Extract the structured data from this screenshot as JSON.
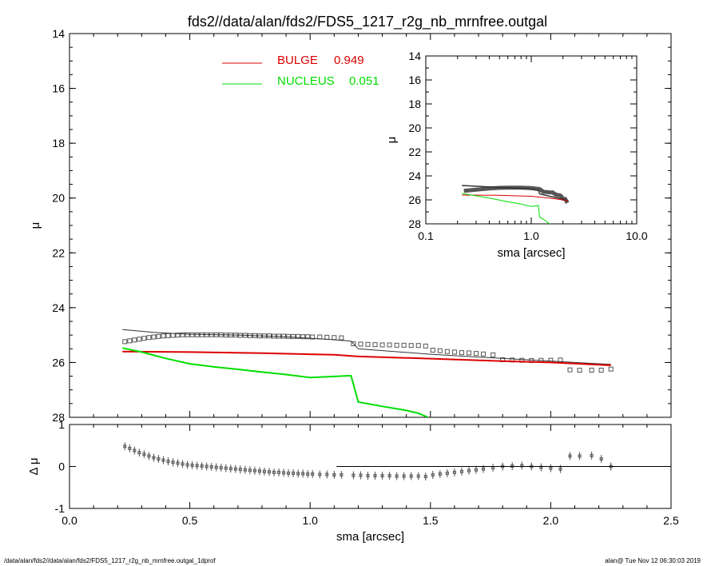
{
  "chart_data": [
    {
      "type": "scatter",
      "title": "fds2//data/alan/fds2/FDS5_1217_r2g_nb_mrnfree.outgal",
      "xlabel": "",
      "ylabel": "μ",
      "xlim": [
        0.0,
        2.5
      ],
      "ylim": [
        28,
        14
      ],
      "y_inverted": true,
      "yticks": [
        "14",
        "16",
        "18",
        "20",
        "22",
        "24",
        "26",
        "28"
      ],
      "legend": [
        {
          "name": "BULGE",
          "value": "0.949",
          "color": "#dd0000"
        },
        {
          "name": "NUCLEUS",
          "value": "0.051",
          "color": "#00dd00"
        }
      ],
      "legend_position": "top-center",
      "series": [
        {
          "name": "data",
          "marker": "square",
          "color": "#555555",
          "x": [
            0.23,
            0.25,
            0.27,
            0.29,
            0.31,
            0.33,
            0.35,
            0.37,
            0.39,
            0.41,
            0.43,
            0.45,
            0.47,
            0.49,
            0.51,
            0.53,
            0.55,
            0.57,
            0.59,
            0.61,
            0.63,
            0.65,
            0.67,
            0.69,
            0.71,
            0.73,
            0.75,
            0.77,
            0.79,
            0.81,
            0.83,
            0.85,
            0.87,
            0.89,
            0.91,
            0.93,
            0.95,
            0.97,
            0.99,
            1.01,
            1.04,
            1.07,
            1.1,
            1.13,
            1.18,
            1.21,
            1.24,
            1.27,
            1.3,
            1.33,
            1.36,
            1.39,
            1.42,
            1.45,
            1.48,
            1.51,
            1.54,
            1.57,
            1.6,
            1.63,
            1.66,
            1.69,
            1.72,
            1.76,
            1.8,
            1.84,
            1.88,
            1.92,
            1.96,
            2.0,
            2.04,
            2.08,
            2.12,
            2.17,
            2.21,
            2.25
          ],
          "y": [
            25.24,
            25.21,
            25.18,
            25.15,
            25.12,
            25.09,
            25.07,
            25.05,
            25.03,
            25.02,
            25.01,
            25.0,
            24.99,
            24.99,
            24.99,
            24.99,
            24.99,
            24.99,
            24.99,
            24.99,
            24.99,
            25.0,
            25.0,
            25.0,
            25.01,
            25.01,
            25.02,
            25.02,
            25.03,
            25.03,
            25.03,
            25.04,
            25.04,
            25.04,
            25.05,
            25.05,
            25.05,
            25.06,
            25.06,
            25.07,
            25.07,
            25.08,
            25.09,
            25.1,
            25.32,
            25.33,
            25.34,
            25.35,
            25.36,
            25.36,
            25.37,
            25.37,
            25.38,
            25.38,
            25.4,
            25.55,
            25.57,
            25.6,
            25.62,
            25.64,
            25.65,
            25.67,
            25.69,
            25.72,
            25.9,
            25.91,
            25.92,
            25.93,
            25.92,
            25.92,
            25.91,
            26.27,
            26.28,
            26.28,
            26.28,
            26.24
          ]
        },
        {
          "name": "model",
          "color": "#333333",
          "x": [
            0.22,
            0.35,
            0.5,
            0.7,
            0.9,
            1.1,
            1.17,
            1.2,
            1.35,
            1.5,
            1.7,
            1.9,
            2.1,
            2.25
          ],
          "y": [
            24.8,
            24.9,
            24.97,
            25.0,
            25.06,
            25.17,
            25.22,
            25.5,
            25.6,
            25.7,
            25.8,
            25.9,
            26.0,
            26.07
          ]
        },
        {
          "name": "BULGE",
          "color": "#dd0000",
          "x": [
            0.22,
            0.5,
            0.8,
            1.1,
            1.2,
            1.5,
            1.8,
            2.0,
            2.25
          ],
          "y": [
            25.6,
            25.62,
            25.66,
            25.72,
            25.78,
            25.86,
            25.95,
            26.0,
            26.1
          ]
        },
        {
          "name": "NUCLEUS",
          "color": "#00dd00",
          "x": [
            0.22,
            0.3,
            0.4,
            0.5,
            0.6,
            0.7,
            0.8,
            0.9,
            1.0,
            1.17,
            1.2,
            1.3,
            1.4,
            1.45,
            1.49
          ],
          "y": [
            25.47,
            25.62,
            25.85,
            26.05,
            26.16,
            26.25,
            26.35,
            26.44,
            26.55,
            26.48,
            27.44,
            27.6,
            27.75,
            27.85,
            28.0
          ]
        }
      ]
    },
    {
      "type": "scatter",
      "xlabel": "sma [arcsec]",
      "ylabel": "Δ μ",
      "xlim": [
        0.0,
        2.5
      ],
      "ylim": [
        -1,
        1
      ],
      "xticks": [
        "0.0",
        "0.5",
        "1.0",
        "1.5",
        "2.0",
        "2.5"
      ],
      "yticks": [
        "-1",
        "0",
        "1"
      ],
      "series": [
        {
          "name": "residual",
          "marker": "square-errorbar",
          "color": "#555555",
          "x": [
            0.23,
            0.25,
            0.27,
            0.29,
            0.31,
            0.33,
            0.35,
            0.37,
            0.39,
            0.41,
            0.43,
            0.45,
            0.47,
            0.49,
            0.51,
            0.53,
            0.55,
            0.57,
            0.59,
            0.61,
            0.63,
            0.65,
            0.67,
            0.69,
            0.71,
            0.73,
            0.75,
            0.77,
            0.79,
            0.81,
            0.83,
            0.85,
            0.87,
            0.89,
            0.91,
            0.93,
            0.95,
            0.97,
            0.99,
            1.01,
            1.04,
            1.07,
            1.1,
            1.13,
            1.18,
            1.21,
            1.24,
            1.27,
            1.3,
            1.33,
            1.36,
            1.39,
            1.42,
            1.45,
            1.48,
            1.51,
            1.54,
            1.57,
            1.6,
            1.63,
            1.66,
            1.69,
            1.72,
            1.76,
            1.8,
            1.84,
            1.88,
            1.92,
            1.96,
            2.0,
            2.04,
            2.08,
            2.12,
            2.17,
            2.21,
            2.25
          ],
          "y": [
            0.48,
            0.43,
            0.38,
            0.33,
            0.29,
            0.25,
            0.21,
            0.18,
            0.15,
            0.12,
            0.1,
            0.08,
            0.06,
            0.04,
            0.03,
            0.02,
            0.01,
            0.0,
            -0.01,
            -0.02,
            -0.03,
            -0.04,
            -0.05,
            -0.06,
            -0.07,
            -0.08,
            -0.09,
            -0.1,
            -0.11,
            -0.12,
            -0.13,
            -0.14,
            -0.14,
            -0.15,
            -0.16,
            -0.16,
            -0.17,
            -0.17,
            -0.18,
            -0.18,
            -0.19,
            -0.19,
            -0.2,
            -0.2,
            -0.21,
            -0.21,
            -0.22,
            -0.22,
            -0.22,
            -0.22,
            -0.23,
            -0.23,
            -0.23,
            -0.23,
            -0.24,
            -0.2,
            -0.18,
            -0.16,
            -0.14,
            -0.12,
            -0.1,
            -0.08,
            -0.06,
            -0.03,
            0.0,
            0.01,
            0.02,
            0.0,
            -0.02,
            -0.04,
            -0.06,
            0.25,
            0.25,
            0.26,
            0.18,
            -0.0
          ]
        },
        {
          "name": "zero",
          "x": [
            1.11,
            2.5
          ],
          "y": [
            0,
            0
          ],
          "color": "#000000"
        }
      ]
    },
    {
      "type": "scatter",
      "xlabel": "sma [arcsec]",
      "ylabel": "μ",
      "x_scale": "log",
      "xlim": [
        0.1,
        10.0
      ],
      "ylim": [
        28,
        14
      ],
      "y_inverted": true,
      "xticks": [
        "0.1",
        "1.0",
        "10.0"
      ],
      "yticks": [
        "14",
        "16",
        "18",
        "20",
        "22",
        "24",
        "26",
        "28"
      ],
      "series": [
        {
          "name": "data",
          "color": "#555555",
          "x": [
            0.23,
            0.3,
            0.4,
            0.5,
            0.6,
            0.7,
            0.8,
            0.9,
            1.0,
            1.1,
            1.2,
            1.3,
            1.4,
            1.5,
            1.6,
            1.7,
            1.8,
            1.9,
            2.0,
            2.1,
            2.2
          ],
          "y": [
            25.25,
            25.15,
            25.05,
            25.0,
            24.98,
            24.98,
            24.99,
            25.0,
            25.02,
            25.05,
            25.1,
            25.32,
            25.35,
            25.37,
            25.38,
            25.55,
            25.6,
            25.65,
            25.9,
            25.92,
            26.25
          ]
        },
        {
          "name": "model",
          "color": "#333333",
          "x": [
            0.22,
            0.5,
            0.9,
            1.17,
            1.2,
            1.5,
            1.9,
            2.25
          ],
          "y": [
            24.8,
            24.97,
            25.06,
            25.22,
            25.5,
            25.7,
            25.9,
            26.07
          ]
        },
        {
          "name": "BULGE",
          "color": "#dd0000",
          "x": [
            0.22,
            0.5,
            1.0,
            1.5,
            2.0,
            2.25
          ],
          "y": [
            25.6,
            25.62,
            25.7,
            25.86,
            26.0,
            26.1
          ]
        },
        {
          "name": "NUCLEUS",
          "color": "#00dd00",
          "x": [
            0.22,
            0.4,
            0.6,
            0.8,
            1.0,
            1.17,
            1.2,
            1.3,
            1.49
          ],
          "y": [
            25.47,
            25.85,
            26.16,
            26.35,
            26.55,
            26.48,
            27.44,
            27.6,
            28.0
          ]
        }
      ]
    }
  ],
  "footer": {
    "left": "/data/alan/fds2//data/alan/fds2/FDS5_1217_r2g_nb_mrnfree.outgal_1dprof",
    "right": "alan@  Tue Nov 12 06:30:03 2019"
  }
}
